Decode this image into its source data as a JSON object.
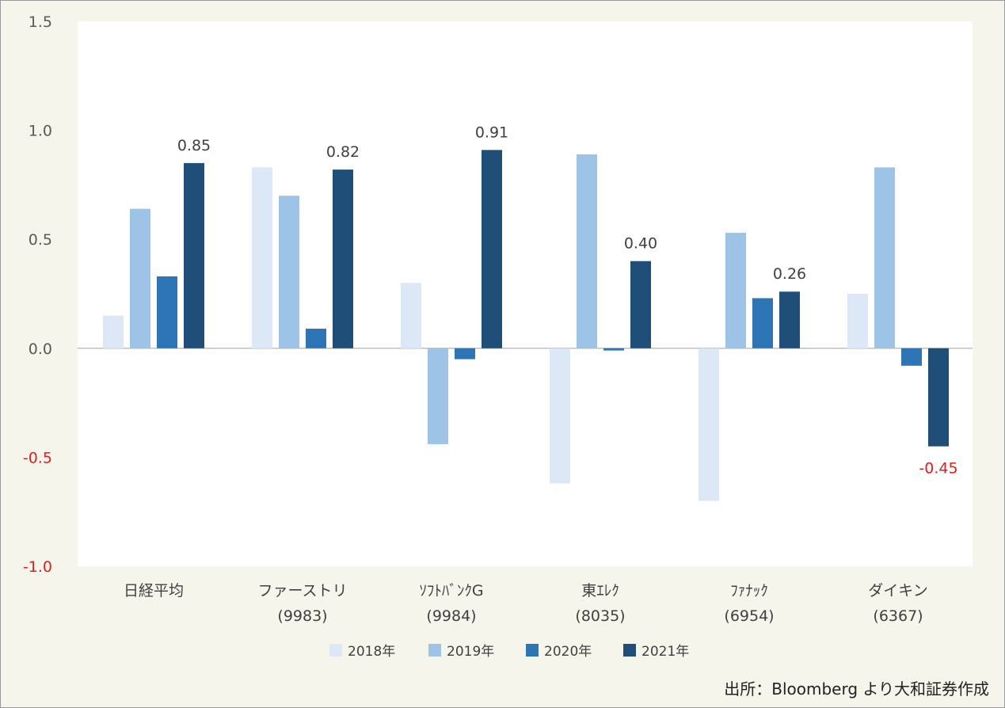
{
  "chart_data": {
    "type": "bar",
    "categories": [
      [
        "日経平均"
      ],
      [
        "ファーストリ",
        "(9983)"
      ],
      [
        "ｿﾌﾄﾊﾞﾝｸG",
        "(9984)"
      ],
      [
        "東ｴﾚｸ",
        "(8035)"
      ],
      [
        "ﾌｧﾅｯｸ",
        "(6954)"
      ],
      [
        "ダイキン",
        "(6367)"
      ]
    ],
    "series": [
      {
        "name": "2018年",
        "color": "#dce8f5",
        "values": [
          0.15,
          0.83,
          0.3,
          -0.62,
          -0.7,
          0.25
        ]
      },
      {
        "name": "2019年",
        "color": "#9dc3e6",
        "values": [
          0.64,
          0.7,
          -0.44,
          0.89,
          0.53,
          0.83
        ]
      },
      {
        "name": "2020年",
        "color": "#2e75b6",
        "values": [
          0.33,
          0.09,
          -0.05,
          -0.01,
          0.23,
          -0.08
        ]
      },
      {
        "name": "2021年",
        "color": "#1f4e79",
        "values": [
          0.85,
          0.82,
          0.91,
          0.4,
          0.26,
          -0.45
        ]
      }
    ],
    "data_labels": {
      "series": "2021年",
      "texts": [
        "0.85",
        "0.82",
        "0.91",
        "0.40",
        "0.26",
        "-0.45"
      ]
    },
    "yticks": [
      "1.5",
      "1.0",
      "0.5",
      "0.0",
      "-0.5",
      "-1.0"
    ],
    "ylim": [
      -1.0,
      1.5
    ],
    "grid": false,
    "legend_position": "bottom"
  },
  "source_text": "出所：Bloomberg より大和証券作成",
  "colors": {
    "background": "#f6f5ec",
    "plot_area": "#ffffff",
    "negative_label": "#e0201b"
  }
}
